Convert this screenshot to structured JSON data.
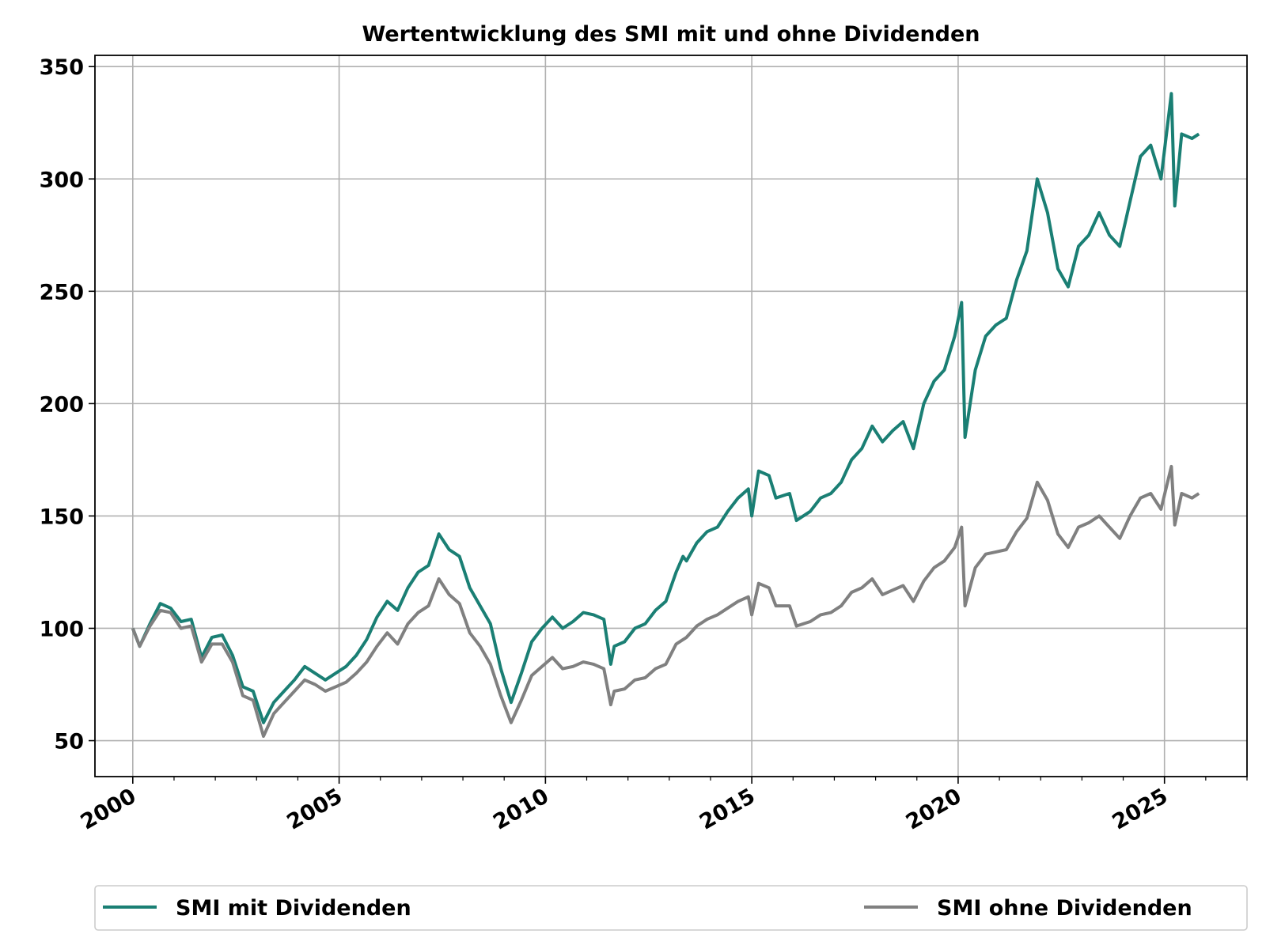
{
  "chart_data": {
    "type": "line",
    "title": "Wertentwicklung des SMI mit und ohne Dividenden",
    "xlabel": "",
    "ylabel": "",
    "xlim": [
      "1999-02-01",
      "2027-01-01"
    ],
    "ylim": [
      34,
      355
    ],
    "yticks": [
      50,
      100,
      150,
      200,
      250,
      300,
      350
    ],
    "xticks": [
      "2000",
      "2005",
      "2010",
      "2015",
      "2020",
      "2025"
    ],
    "grid": true,
    "legend_position": "bottom",
    "series": [
      {
        "name": "SMI mit Dividenden",
        "color": "#1a7f74",
        "points": [
          [
            "2000-01-01",
            100
          ],
          [
            "2000-03-01",
            92
          ],
          [
            "2000-06-01",
            102
          ],
          [
            "2000-09-01",
            111
          ],
          [
            "2000-12-01",
            109
          ],
          [
            "2001-03-01",
            103
          ],
          [
            "2001-06-01",
            104
          ],
          [
            "2001-09-01",
            87
          ],
          [
            "2001-12-01",
            96
          ],
          [
            "2002-03-01",
            97
          ],
          [
            "2002-06-01",
            88
          ],
          [
            "2002-09-01",
            74
          ],
          [
            "2002-12-01",
            72
          ],
          [
            "2003-03-01",
            58
          ],
          [
            "2003-06-01",
            67
          ],
          [
            "2003-09-01",
            72
          ],
          [
            "2003-12-01",
            77
          ],
          [
            "2004-03-01",
            83
          ],
          [
            "2004-06-01",
            80
          ],
          [
            "2004-09-01",
            77
          ],
          [
            "2004-12-01",
            80
          ],
          [
            "2005-03-01",
            83
          ],
          [
            "2005-06-01",
            88
          ],
          [
            "2005-09-01",
            95
          ],
          [
            "2005-12-01",
            105
          ],
          [
            "2006-03-01",
            112
          ],
          [
            "2006-06-01",
            108
          ],
          [
            "2006-09-01",
            118
          ],
          [
            "2006-12-01",
            125
          ],
          [
            "2007-03-01",
            128
          ],
          [
            "2007-06-01",
            142
          ],
          [
            "2007-09-01",
            135
          ],
          [
            "2007-12-01",
            132
          ],
          [
            "2008-03-01",
            118
          ],
          [
            "2008-06-01",
            110
          ],
          [
            "2008-09-01",
            102
          ],
          [
            "2008-12-01",
            82
          ],
          [
            "2009-03-01",
            67
          ],
          [
            "2009-06-01",
            80
          ],
          [
            "2009-09-01",
            94
          ],
          [
            "2009-12-01",
            100
          ],
          [
            "2010-03-01",
            105
          ],
          [
            "2010-06-01",
            100
          ],
          [
            "2010-09-01",
            103
          ],
          [
            "2010-12-01",
            107
          ],
          [
            "2011-03-01",
            106
          ],
          [
            "2011-06-01",
            104
          ],
          [
            "2011-08-01",
            84
          ],
          [
            "2011-09-01",
            92
          ],
          [
            "2011-12-01",
            94
          ],
          [
            "2012-03-01",
            100
          ],
          [
            "2012-06-01",
            102
          ],
          [
            "2012-09-01",
            108
          ],
          [
            "2012-12-01",
            112
          ],
          [
            "2013-03-01",
            125
          ],
          [
            "2013-05-01",
            132
          ],
          [
            "2013-06-01",
            130
          ],
          [
            "2013-09-01",
            138
          ],
          [
            "2013-12-01",
            143
          ],
          [
            "2014-03-01",
            145
          ],
          [
            "2014-06-01",
            152
          ],
          [
            "2014-09-01",
            158
          ],
          [
            "2014-12-01",
            162
          ],
          [
            "2015-01-01",
            150
          ],
          [
            "2015-03-01",
            170
          ],
          [
            "2015-06-01",
            168
          ],
          [
            "2015-08-01",
            158
          ],
          [
            "2015-12-01",
            160
          ],
          [
            "2016-02-01",
            148
          ],
          [
            "2016-06-01",
            152
          ],
          [
            "2016-09-01",
            158
          ],
          [
            "2016-12-01",
            160
          ],
          [
            "2017-03-01",
            165
          ],
          [
            "2017-06-01",
            175
          ],
          [
            "2017-09-01",
            180
          ],
          [
            "2017-12-01",
            190
          ],
          [
            "2018-03-01",
            183
          ],
          [
            "2018-06-01",
            188
          ],
          [
            "2018-09-01",
            192
          ],
          [
            "2018-12-01",
            180
          ],
          [
            "2019-03-01",
            200
          ],
          [
            "2019-06-01",
            210
          ],
          [
            "2019-09-01",
            215
          ],
          [
            "2019-12-01",
            230
          ],
          [
            "2020-02-01",
            245
          ],
          [
            "2020-03-01",
            185
          ],
          [
            "2020-06-01",
            215
          ],
          [
            "2020-09-01",
            230
          ],
          [
            "2020-12-01",
            235
          ],
          [
            "2021-03-01",
            238
          ],
          [
            "2021-06-01",
            255
          ],
          [
            "2021-09-01",
            268
          ],
          [
            "2021-12-01",
            300
          ],
          [
            "2022-03-01",
            285
          ],
          [
            "2022-06-01",
            260
          ],
          [
            "2022-09-01",
            252
          ],
          [
            "2022-12-01",
            270
          ],
          [
            "2023-03-01",
            275
          ],
          [
            "2023-06-01",
            285
          ],
          [
            "2023-09-01",
            275
          ],
          [
            "2023-12-01",
            270
          ],
          [
            "2024-03-01",
            290
          ],
          [
            "2024-06-01",
            310
          ],
          [
            "2024-09-01",
            315
          ],
          [
            "2024-12-01",
            300
          ],
          [
            "2025-03-01",
            338
          ],
          [
            "2025-04-01",
            288
          ],
          [
            "2025-06-01",
            320
          ],
          [
            "2025-09-01",
            318
          ],
          [
            "2025-11-01",
            320
          ]
        ]
      },
      {
        "name": "SMI ohne Dividenden",
        "color": "#808080",
        "points": [
          [
            "2000-01-01",
            100
          ],
          [
            "2000-03-01",
            92
          ],
          [
            "2000-06-01",
            101
          ],
          [
            "2000-09-01",
            108
          ],
          [
            "2000-12-01",
            107
          ],
          [
            "2001-03-01",
            100
          ],
          [
            "2001-06-01",
            101
          ],
          [
            "2001-09-01",
            85
          ],
          [
            "2001-12-01",
            93
          ],
          [
            "2002-03-01",
            93
          ],
          [
            "2002-06-01",
            85
          ],
          [
            "2002-09-01",
            70
          ],
          [
            "2002-12-01",
            68
          ],
          [
            "2003-03-01",
            52
          ],
          [
            "2003-06-01",
            62
          ],
          [
            "2003-09-01",
            67
          ],
          [
            "2003-12-01",
            72
          ],
          [
            "2004-03-01",
            77
          ],
          [
            "2004-06-01",
            75
          ],
          [
            "2004-09-01",
            72
          ],
          [
            "2004-12-01",
            74
          ],
          [
            "2005-03-01",
            76
          ],
          [
            "2005-06-01",
            80
          ],
          [
            "2005-09-01",
            85
          ],
          [
            "2005-12-01",
            92
          ],
          [
            "2006-03-01",
            98
          ],
          [
            "2006-06-01",
            93
          ],
          [
            "2006-09-01",
            102
          ],
          [
            "2006-12-01",
            107
          ],
          [
            "2007-03-01",
            110
          ],
          [
            "2007-06-01",
            122
          ],
          [
            "2007-09-01",
            115
          ],
          [
            "2007-12-01",
            111
          ],
          [
            "2008-03-01",
            98
          ],
          [
            "2008-06-01",
            92
          ],
          [
            "2008-09-01",
            84
          ],
          [
            "2008-12-01",
            70
          ],
          [
            "2009-03-01",
            58
          ],
          [
            "2009-06-01",
            68
          ],
          [
            "2009-09-01",
            79
          ],
          [
            "2009-12-01",
            83
          ],
          [
            "2010-03-01",
            87
          ],
          [
            "2010-06-01",
            82
          ],
          [
            "2010-09-01",
            83
          ],
          [
            "2010-12-01",
            85
          ],
          [
            "2011-03-01",
            84
          ],
          [
            "2011-06-01",
            82
          ],
          [
            "2011-08-01",
            66
          ],
          [
            "2011-09-01",
            72
          ],
          [
            "2011-12-01",
            73
          ],
          [
            "2012-03-01",
            77
          ],
          [
            "2012-06-01",
            78
          ],
          [
            "2012-09-01",
            82
          ],
          [
            "2012-12-01",
            84
          ],
          [
            "2013-03-01",
            93
          ],
          [
            "2013-06-01",
            96
          ],
          [
            "2013-09-01",
            101
          ],
          [
            "2013-12-01",
            104
          ],
          [
            "2014-03-01",
            106
          ],
          [
            "2014-06-01",
            109
          ],
          [
            "2014-09-01",
            112
          ],
          [
            "2014-12-01",
            114
          ],
          [
            "2015-01-01",
            106
          ],
          [
            "2015-03-01",
            120
          ],
          [
            "2015-06-01",
            118
          ],
          [
            "2015-08-01",
            110
          ],
          [
            "2015-12-01",
            110
          ],
          [
            "2016-02-01",
            101
          ],
          [
            "2016-06-01",
            103
          ],
          [
            "2016-09-01",
            106
          ],
          [
            "2016-12-01",
            107
          ],
          [
            "2017-03-01",
            110
          ],
          [
            "2017-06-01",
            116
          ],
          [
            "2017-09-01",
            118
          ],
          [
            "2017-12-01",
            122
          ],
          [
            "2018-03-01",
            115
          ],
          [
            "2018-06-01",
            117
          ],
          [
            "2018-09-01",
            119
          ],
          [
            "2018-12-01",
            112
          ],
          [
            "2019-03-01",
            121
          ],
          [
            "2019-06-01",
            127
          ],
          [
            "2019-09-01",
            130
          ],
          [
            "2019-12-01",
            136
          ],
          [
            "2020-02-01",
            145
          ],
          [
            "2020-03-01",
            110
          ],
          [
            "2020-06-01",
            127
          ],
          [
            "2020-09-01",
            133
          ],
          [
            "2020-12-01",
            134
          ],
          [
            "2021-03-01",
            135
          ],
          [
            "2021-06-01",
            143
          ],
          [
            "2021-09-01",
            149
          ],
          [
            "2021-12-01",
            165
          ],
          [
            "2022-03-01",
            157
          ],
          [
            "2022-06-01",
            142
          ],
          [
            "2022-09-01",
            136
          ],
          [
            "2022-12-01",
            145
          ],
          [
            "2023-03-01",
            147
          ],
          [
            "2023-06-01",
            150
          ],
          [
            "2023-09-01",
            145
          ],
          [
            "2023-12-01",
            140
          ],
          [
            "2024-03-01",
            150
          ],
          [
            "2024-06-01",
            158
          ],
          [
            "2024-09-01",
            160
          ],
          [
            "2024-12-01",
            153
          ],
          [
            "2025-03-01",
            172
          ],
          [
            "2025-04-01",
            146
          ],
          [
            "2025-06-01",
            160
          ],
          [
            "2025-09-01",
            158
          ],
          [
            "2025-11-01",
            160
          ]
        ]
      }
    ]
  }
}
